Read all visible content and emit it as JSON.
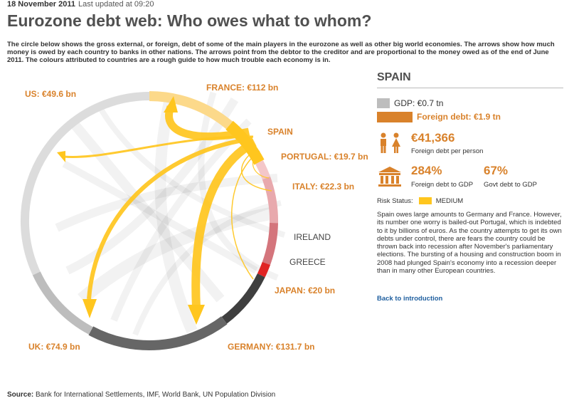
{
  "header": {
    "date": "18 November 2011",
    "updated": "Last updated at 09:20",
    "title": "Eurozone debt web: Who owes what to whom?",
    "intro": "The circle below shows the gross external, or foreign, debt of some of the main players in the eurozone as well as other big world economies. The arrows show how much money is owed by each country to banks in other nations. The arrows point from the debtor to the creditor and are proportional to the money owed as of the end of June 2011. The colours attributed to countries are a rough guide to how much trouble each economy is in."
  },
  "diagram": {
    "selected": "Spain",
    "countries": [
      {
        "id": "us",
        "label": "US: €49.6 bn",
        "color": "#dcdcdc",
        "label_color": "#d9822b"
      },
      {
        "id": "france",
        "label": "FRANCE: €112 bn",
        "color": "#fcd98a",
        "label_color": "#d9822b"
      },
      {
        "id": "spain",
        "label": "SPAIN",
        "color": "#ffc61e",
        "label_color": "#d9822b"
      },
      {
        "id": "portugal",
        "label": "PORTUGAL: €19.7 bn",
        "color": "#f4c7c9",
        "label_color": "#d9822b"
      },
      {
        "id": "italy",
        "label": "ITALY: €22.3 bn",
        "color": "#e8a9ad",
        "label_color": "#d9822b"
      },
      {
        "id": "ireland",
        "label": "IRELAND",
        "color": "#d4757c",
        "label_color": "#444444"
      },
      {
        "id": "greece",
        "label": "GREECE",
        "color": "#e02424",
        "label_color": "#444444"
      },
      {
        "id": "japan",
        "label": "JAPAN: €20 bn",
        "color": "#3f3f3f",
        "label_color": "#d9822b"
      },
      {
        "id": "germany",
        "label": "GERMANY: €131.7 bn",
        "color": "#666666",
        "label_color": "#d9822b"
      },
      {
        "id": "uk",
        "label": "UK: €74.9 bn",
        "color": "#bdbdbd",
        "label_color": "#d9822b"
      }
    ],
    "flows_from_spain_bn": {
      "france": 112,
      "germany": 131.7,
      "uk": 74.9,
      "us": 49.6,
      "italy": 22.3,
      "japan": 20,
      "portugal": 19.7
    }
  },
  "panel": {
    "country": "SPAIN",
    "gdp": "GDP: €0.7 tn",
    "foreign_debt": "Foreign debt: €1.9 tn",
    "per_person_value": "€41,366",
    "per_person_label": "Foreign debt per person",
    "debt_to_gdp_value": "284%",
    "debt_to_gdp_label": "Foreign debt to GDP",
    "govt_debt_value": "67%",
    "govt_debt_label": "Govt debt to GDP",
    "risk_label": "Risk Status:",
    "risk_value": "MEDIUM",
    "risk_color": "#ffc61e",
    "description": "Spain owes large amounts to Germany and France. However, its number one worry is bailed-out Portugal, which is indebted to it by billions of euros. As the country attempts to get its own debts under control, there are fears the country could be thrown back into recession after November's parliamentary elections. The bursting of a housing and construction boom in 2008 had plunged Spain's economy into a recession deeper than in many other European countries.",
    "back_link": "Back to introduction"
  },
  "footer": {
    "source_label": "Source:",
    "source_text": "Bank for International Settlements, IMF, World Bank, UN Population Division"
  },
  "icons": [
    "people-icon",
    "bank-icon"
  ]
}
